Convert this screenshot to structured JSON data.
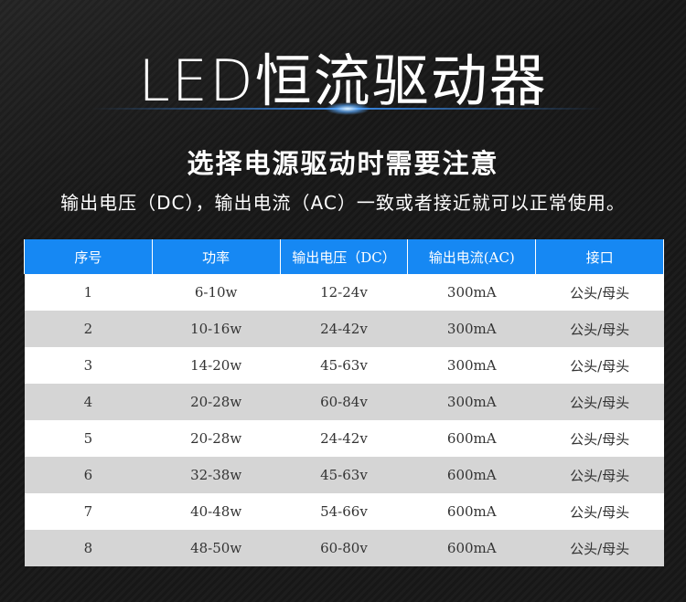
{
  "title": "LED恒流驱动器",
  "subtitle": "选择电源驱动时需要注意",
  "note": "输出电压（DC），输出电流（AC）一致或者接近就可以正常使用。",
  "table": {
    "headers": [
      "序号",
      "功率",
      "输出电压（DC）",
      "输出电流(AC)",
      "接口"
    ],
    "rows": [
      [
        "1",
        "6-10w",
        "12-24v",
        "300mA",
        "公头/母头"
      ],
      [
        "2",
        "10-16w",
        "24-42v",
        "300mA",
        "公头/母头"
      ],
      [
        "3",
        "14-20w",
        "45-63v",
        "300mA",
        "公头/母头"
      ],
      [
        "4",
        "20-28w",
        "60-84v",
        "300mA",
        "公头/母头"
      ],
      [
        "5",
        "20-28w",
        "24-42v",
        "600mA",
        "公头/母头"
      ],
      [
        "6",
        "32-38w",
        "45-63v",
        "600mA",
        "公头/母头"
      ],
      [
        "7",
        "40-48w",
        "54-66v",
        "600mA",
        "公头/母头"
      ],
      [
        "8",
        "48-50w",
        "60-80v",
        "600mA",
        "公头/母头"
      ]
    ]
  },
  "colors": {
    "header_bg": "#1688f3",
    "row_odd": "#ffffff",
    "row_even": "#d5d5d5",
    "background": "#1a1a1a"
  }
}
